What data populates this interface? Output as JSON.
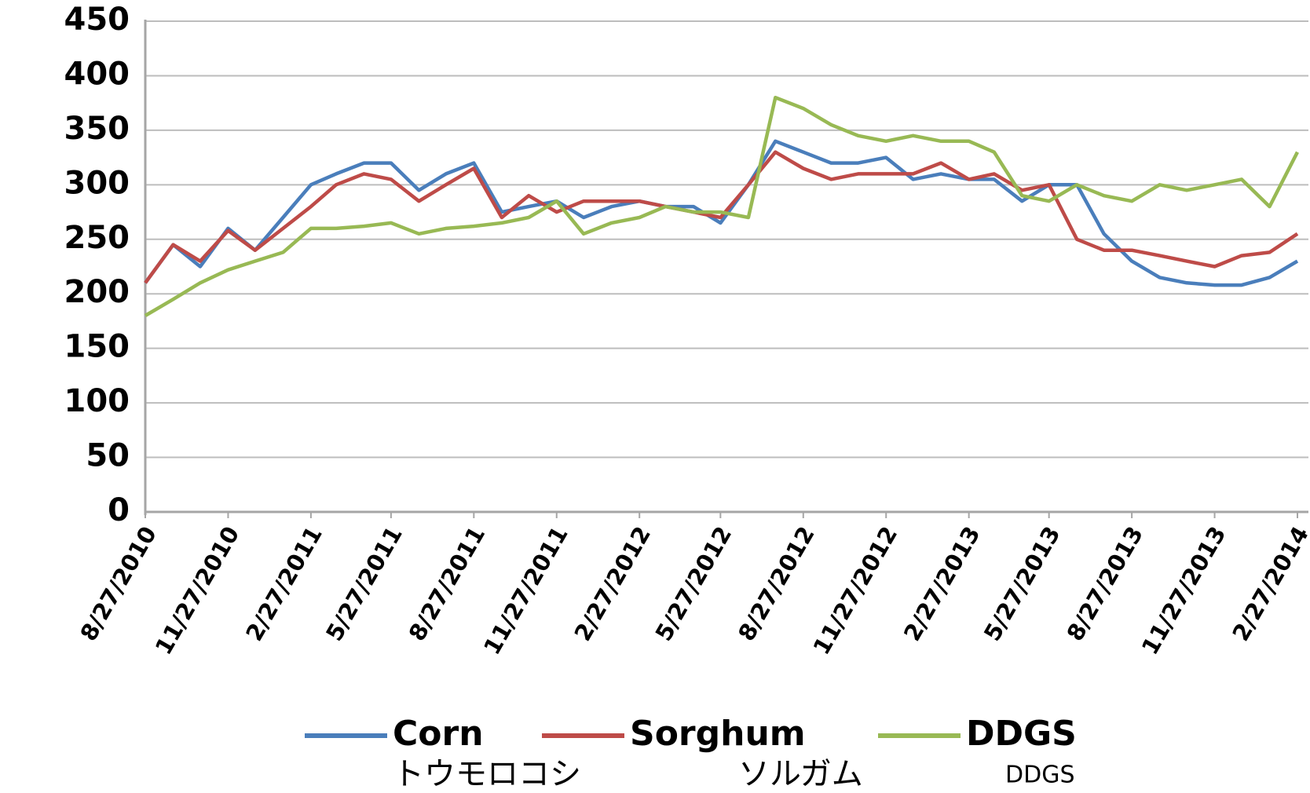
{
  "chart_data": {
    "type": "line",
    "x": [
      "8/27/2010",
      "9/27/2010",
      "10/27/2010",
      "11/27/2010",
      "12/27/2010",
      "1/27/2011",
      "2/27/2011",
      "3/27/2011",
      "4/27/2011",
      "5/27/2011",
      "6/27/2011",
      "7/27/2011",
      "8/27/2011",
      "9/27/2011",
      "10/27/2011",
      "11/27/2011",
      "12/27/2011",
      "1/27/2012",
      "2/27/2012",
      "3/27/2012",
      "4/27/2012",
      "5/27/2012",
      "6/27/2012",
      "7/27/2012",
      "8/27/2012",
      "9/27/2012",
      "10/27/2012",
      "11/27/2012",
      "12/27/2012",
      "1/27/2013",
      "2/27/2013",
      "3/27/2013",
      "4/27/2013",
      "5/27/2013",
      "6/27/2013",
      "7/27/2013",
      "8/27/2013",
      "9/27/2013",
      "10/27/2013",
      "11/27/2013",
      "12/27/2013",
      "1/27/2014",
      "2/27/2014"
    ],
    "series": [
      {
        "name": "Corn",
        "color": "#4a7ebb",
        "values": [
          210,
          245,
          225,
          260,
          240,
          270,
          300,
          310,
          320,
          320,
          295,
          310,
          320,
          275,
          280,
          285,
          270,
          280,
          285,
          280,
          280,
          265,
          300,
          340,
          330,
          320,
          320,
          325,
          305,
          310,
          305,
          305,
          285,
          300,
          300,
          255,
          230,
          215,
          210,
          208,
          208,
          215,
          230
        ]
      },
      {
        "name": "Sorghum",
        "color": "#be4b48",
        "values": [
          210,
          245,
          230,
          258,
          240,
          260,
          280,
          300,
          310,
          305,
          285,
          300,
          315,
          270,
          290,
          275,
          285,
          285,
          285,
          280,
          275,
          270,
          300,
          330,
          315,
          305,
          310,
          310,
          310,
          320,
          305,
          310,
          295,
          300,
          250,
          240,
          240,
          235,
          230,
          225,
          235,
          238,
          255
        ]
      },
      {
        "name": "DDGS",
        "color": "#98b954",
        "values": [
          180,
          195,
          210,
          222,
          230,
          238,
          260,
          260,
          262,
          265,
          255,
          260,
          262,
          265,
          270,
          285,
          255,
          265,
          270,
          280,
          275,
          275,
          270,
          380,
          370,
          355,
          345,
          340,
          345,
          340,
          340,
          330,
          290,
          285,
          300,
          290,
          285,
          300,
          295,
          300,
          305,
          280,
          330
        ]
      }
    ],
    "legend_subtitles": [
      "トウモロコシ",
      "ソルガム",
      "DDGS"
    ],
    "xlim": [
      "8/27/2010",
      "2/27/2014"
    ],
    "xticks": [
      "8/27/2010",
      "11/27/2010",
      "2/27/2011",
      "5/27/2011",
      "8/27/2011",
      "11/27/2011",
      "2/27/2012",
      "5/27/2012",
      "8/27/2012",
      "11/27/2012",
      "2/27/2013",
      "5/27/2013",
      "8/27/2013",
      "11/27/2013",
      "2/27/2014"
    ],
    "ylim": [
      0,
      450
    ],
    "yticks": [
      0,
      50,
      100,
      150,
      200,
      250,
      300,
      350,
      400,
      450
    ],
    "grid": true,
    "legend": "bottom"
  }
}
